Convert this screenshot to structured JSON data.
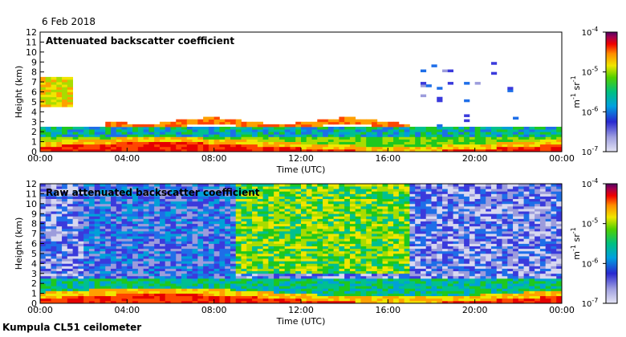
{
  "figure": {
    "date": "6 Feb 2018",
    "footer": "Kumpula CL51 ceilometer"
  },
  "colors": {
    "scale": [
      "#d8d8f0",
      "#9c9cdc",
      "#3a3adc",
      "#1e6ee8",
      "#00a0d8",
      "#00c090",
      "#1ec81e",
      "#a8dc00",
      "#f0e600",
      "#ffa000",
      "#ff4600",
      "#e60000",
      "#a00050",
      "#640064"
    ]
  },
  "chart_data": [
    {
      "type": "heatmap",
      "title": "Attenuated backscatter coefficient",
      "xlabel": "Time (UTC)",
      "ylabel": "Height (km)",
      "xlim": [
        0,
        24
      ],
      "ylim": [
        0,
        12
      ],
      "x_ticks": [
        "00:00",
        "04:00",
        "08:00",
        "12:00",
        "16:00",
        "20:00",
        "00:00"
      ],
      "y_ticks": [
        "0",
        "1",
        "2",
        "3",
        "4",
        "5",
        "6",
        "7",
        "8",
        "9",
        "10",
        "11",
        "12"
      ],
      "colorbar": {
        "label_base": "m",
        "label_exp1": "-1",
        "label_mid": " sr",
        "label_exp2": "-1",
        "scale": "log",
        "range": [
          1e-07,
          0.0001
        ],
        "ticks": [
          {
            "base": "10",
            "exp": "-7"
          },
          {
            "base": "10",
            "exp": "-6"
          },
          {
            "base": "10",
            "exp": "-5"
          },
          {
            "base": "10",
            "exp": "-4"
          }
        ]
      }
    },
    {
      "type": "heatmap",
      "title": "Raw attenuated backscatter coefficient",
      "xlabel": "Time (UTC)",
      "ylabel": "Height (km)",
      "xlim": [
        0,
        24
      ],
      "ylim": [
        0,
        12
      ],
      "x_ticks": [
        "00:00",
        "04:00",
        "08:00",
        "12:00",
        "16:00",
        "20:00",
        "00:00"
      ],
      "y_ticks": [
        "0",
        "1",
        "2",
        "3",
        "4",
        "5",
        "6",
        "7",
        "8",
        "9",
        "10",
        "11",
        "12"
      ],
      "colorbar": {
        "label_base": "m",
        "label_exp1": "-1",
        "label_mid": " sr",
        "label_exp2": "-1",
        "scale": "log",
        "range": [
          1e-07,
          0.0001
        ],
        "ticks": [
          {
            "base": "10",
            "exp": "-7"
          },
          {
            "base": "10",
            "exp": "-6"
          },
          {
            "base": "10",
            "exp": "-5"
          },
          {
            "base": "10",
            "exp": "-4"
          }
        ]
      }
    }
  ]
}
